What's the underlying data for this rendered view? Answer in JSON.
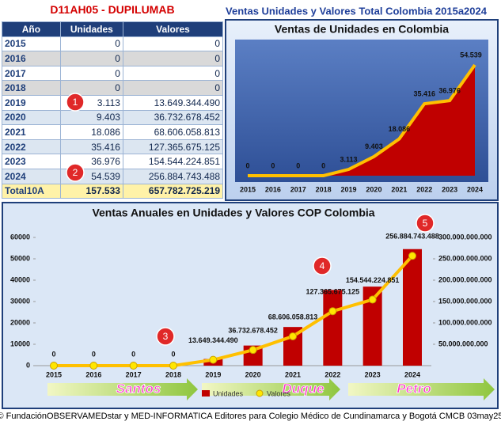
{
  "header": {
    "code": "D11AH05 - DUPILUMAB",
    "title": "Ventas Unidades y Valores Total Colombia 2015a2024"
  },
  "table": {
    "columns": [
      "Año",
      "Unidades",
      "Valores"
    ],
    "rows": [
      [
        "2015",
        "0",
        "0"
      ],
      [
        "2016",
        "0",
        "0"
      ],
      [
        "2017",
        "0",
        "0"
      ],
      [
        "2018",
        "0",
        "0"
      ],
      [
        "2019",
        "3.113",
        "13.649.344.490"
      ],
      [
        "2020",
        "9.403",
        "36.732.678.452"
      ],
      [
        "2021",
        "18.086",
        "68.606.058.813"
      ],
      [
        "2022",
        "35.416",
        "127.365.675.125"
      ],
      [
        "2023",
        "36.976",
        "154.544.224.851"
      ],
      [
        "2024",
        "54.539",
        "256.884.743.488"
      ]
    ],
    "total": [
      "Total10A",
      "157.533",
      "657.782.725.219"
    ]
  },
  "chart_data": [
    {
      "type": "area",
      "title": "Ventas de Unidades en Colombia",
      "categories": [
        "2015",
        "2016",
        "2017",
        "2018",
        "2019",
        "2020",
        "2021",
        "2022",
        "2023",
        "2024"
      ],
      "values": [
        0,
        0,
        0,
        0,
        3113,
        9403,
        18086,
        35416,
        36976,
        54539
      ],
      "value_labels": [
        "0",
        "0",
        "0",
        "0",
        "3.113",
        "9.403",
        "18.086",
        "35.416",
        "36.976",
        "54.539"
      ],
      "color": "#c00000",
      "line_color": "#ffc000"
    },
    {
      "type": "bar_line",
      "title": "Ventas Anuales en Unidades y Valores COP Colombia",
      "categories": [
        "2015",
        "2016",
        "2017",
        "2018",
        "2019",
        "2020",
        "2021",
        "2022",
        "2023",
        "2024"
      ],
      "series": [
        {
          "name": "Unidades",
          "type": "bar",
          "color": "#c00000",
          "values": [
            0,
            0,
            0,
            0,
            3113,
            9403,
            18086,
            35416,
            36976,
            54539
          ]
        },
        {
          "name": "Valores",
          "type": "line",
          "axis": "y2",
          "color": "#ffc000",
          "values": [
            0,
            0,
            0,
            0,
            13649344490,
            36732678452,
            68606058813,
            127365675125,
            154544224851,
            256884743488
          ],
          "value_labels": [
            "0",
            "0",
            "0",
            "0",
            "13.649.344.490",
            "36.732.678.452",
            "68.606.058.813",
            "127.365.675.125",
            "154.544.224.851",
            "256.884.743.488"
          ]
        }
      ],
      "ylim": [
        0,
        60000
      ],
      "yticks": [
        0,
        10000,
        20000,
        30000,
        40000,
        50000,
        60000
      ],
      "y2lim": [
        0,
        300000000000
      ],
      "y2ticks": [
        {
          "value": 50000000000,
          "label": "50.000.000.000"
        },
        {
          "value": 100000000000,
          "label": "100.000.000.000"
        },
        {
          "value": 150000000000,
          "label": "150.000.000.000"
        },
        {
          "value": 200000000000,
          "label": "200.000.000.000"
        },
        {
          "value": 250000000000,
          "label": "250.000.000.000"
        },
        {
          "value": 300000000000,
          "label": "300.000.000.000"
        }
      ],
      "legend": "bottom"
    }
  ],
  "markers": [
    "1",
    "2",
    "3",
    "4",
    "5"
  ],
  "eras": [
    "Santos",
    "Duque",
    "Petro"
  ],
  "footer": "© FundaciónOBSERVAMEDstar y MED-INFORMATICA Editores para Colegio Médico de Cundinamarca y Bogotá CMCB 03may25"
}
